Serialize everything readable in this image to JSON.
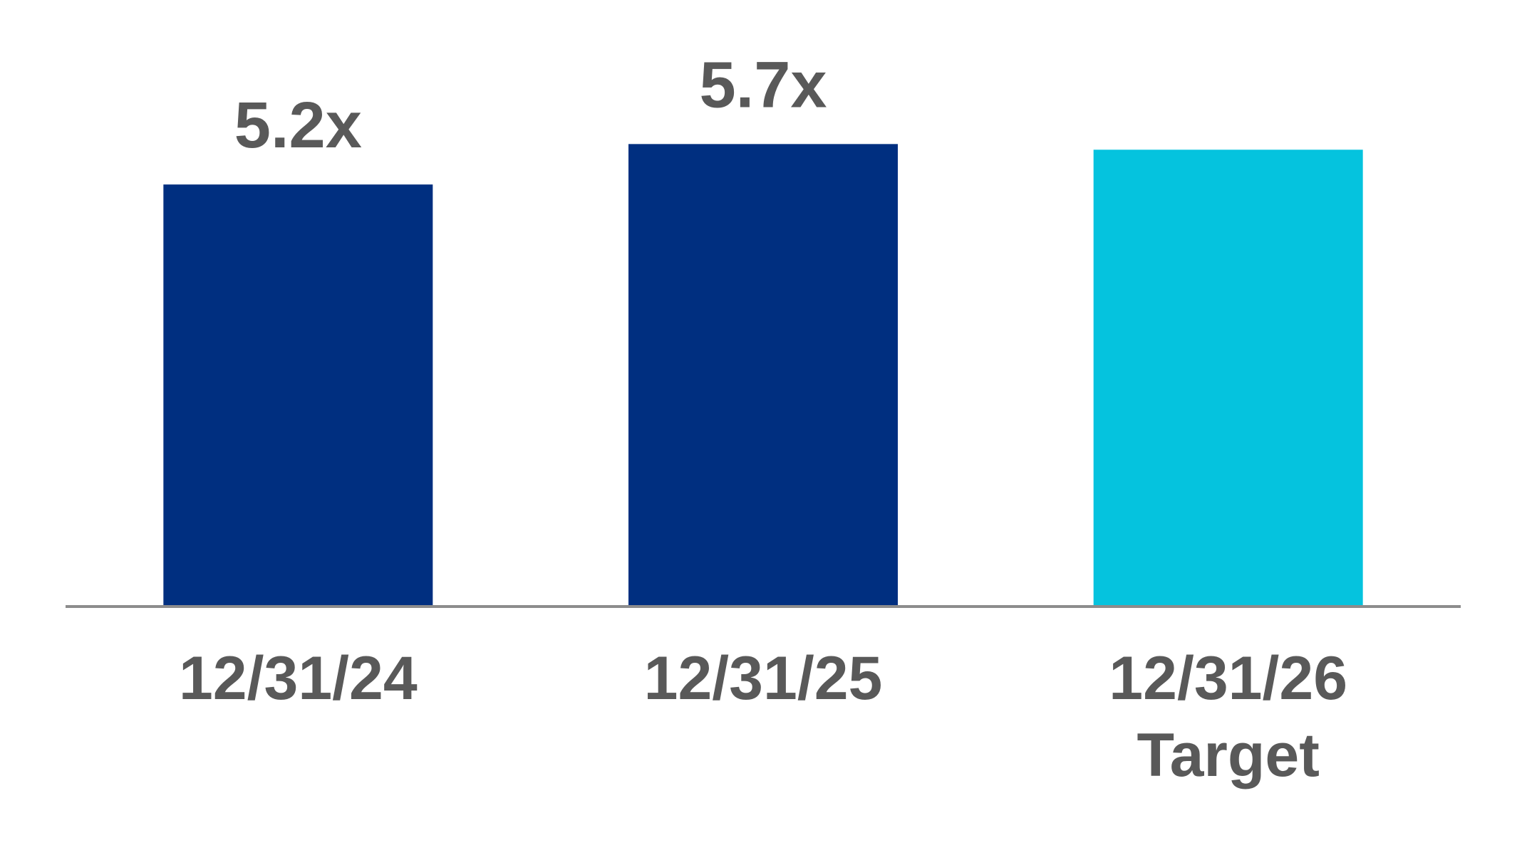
{
  "chart_data": {
    "type": "bar",
    "categories": [
      [
        "12/31/24"
      ],
      [
        "12/31/25"
      ],
      [
        "12/31/26",
        "Target"
      ]
    ],
    "values": [
      5.2,
      5.7,
      5.63
    ],
    "data_labels": [
      "5.2x",
      "5.7x",
      ""
    ],
    "bar_colors": [
      "#002F80",
      "#002F80",
      "#05C3DE"
    ],
    "axis_color": "#8C8C8C",
    "label_color": "#595959",
    "ylim": [
      0,
      6.9
    ],
    "grid": false,
    "legend": "none",
    "title": "",
    "xlabel": "",
    "ylabel": ""
  }
}
